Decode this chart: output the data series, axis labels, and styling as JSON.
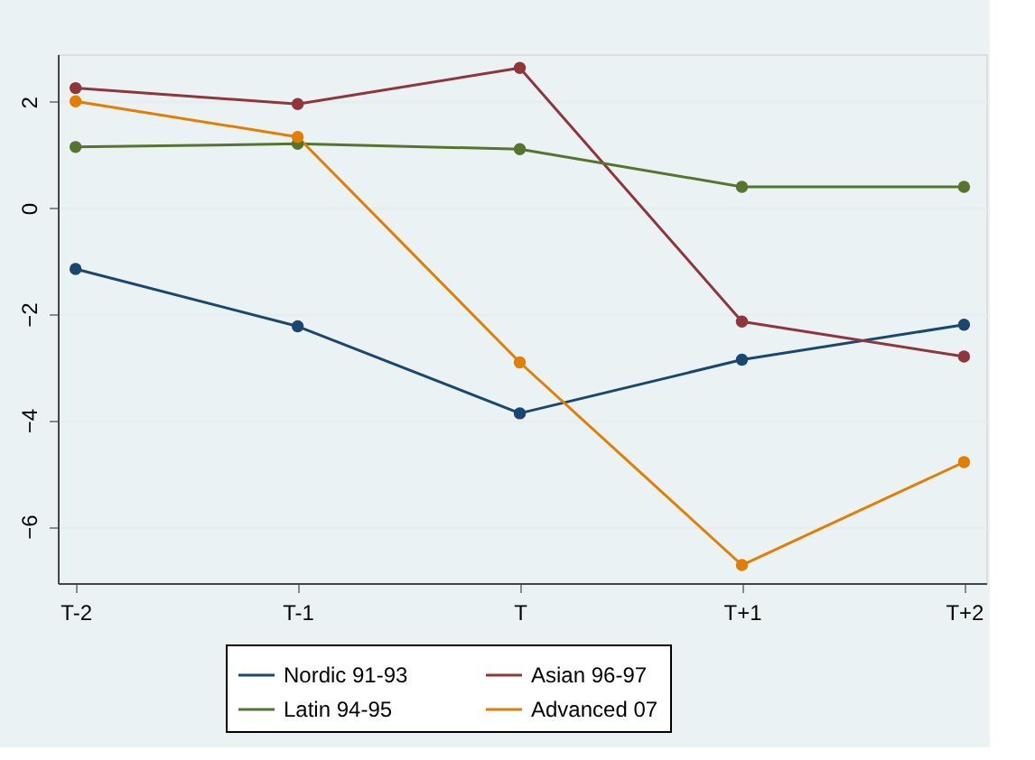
{
  "chart_data": {
    "type": "line",
    "categories": [
      "T-2",
      "T-1",
      "T",
      "T+1",
      "T+2"
    ],
    "series": [
      {
        "name": "Nordic 91-93",
        "color": "#1a476f",
        "values": [
          -1.15,
          -2.23,
          -3.87,
          -2.86,
          -2.2
        ]
      },
      {
        "name": "Asian 96-97",
        "color": "#90353b",
        "values": [
          2.26,
          1.96,
          2.64,
          -2.14,
          -2.8
        ]
      },
      {
        "name": "Latin 94-95",
        "color": "#55752f",
        "values": [
          1.15,
          1.21,
          1.11,
          0.4,
          0.4
        ]
      },
      {
        "name": "Advanced 07",
        "color": "#e37e00",
        "values": [
          2.01,
          1.34,
          -2.91,
          -6.73,
          -4.79
        ]
      }
    ],
    "ylim": [
      -7.07,
      2.9
    ],
    "yticks": [
      -6,
      -4,
      -2,
      0,
      2
    ],
    "grid": "y",
    "legend": "bottom",
    "marker": "circle",
    "line_style": "solid"
  }
}
